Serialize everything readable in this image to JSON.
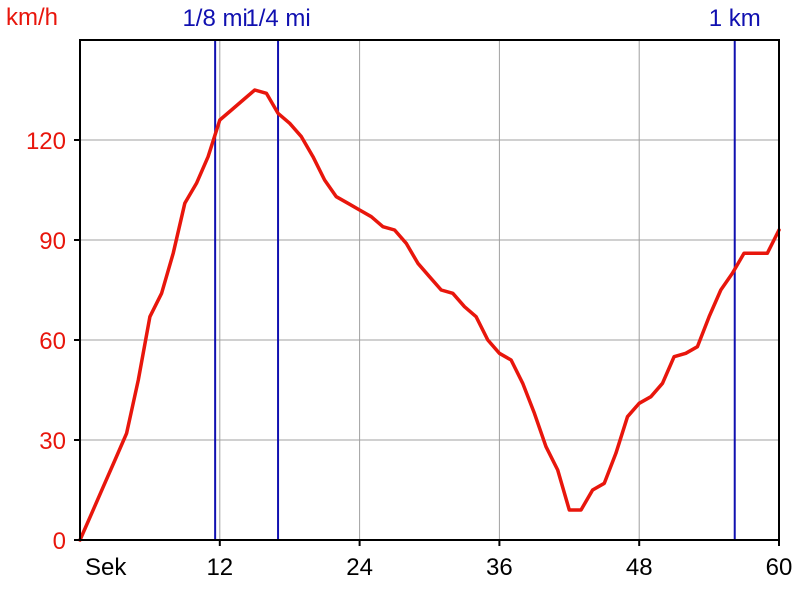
{
  "chart_data": {
    "type": "line",
    "ylabel": "km/h",
    "xlabel": "Sek",
    "xlim": [
      0,
      60
    ],
    "ylim": [
      0,
      150
    ],
    "x_ticks": [
      12,
      24,
      36,
      48,
      60
    ],
    "x_tick_labels": [
      "12",
      "24",
      "36",
      "48",
      "60"
    ],
    "y_ticks": [
      0,
      30,
      60,
      90,
      120
    ],
    "y_tick_labels": [
      "0",
      "30",
      "60",
      "90",
      "120"
    ],
    "grid": true,
    "colors": {
      "line": "#e8160c",
      "markers": "#1010b0",
      "grid": "#a0a0a0",
      "axis": "#000000",
      "ylabels": "#e8160c"
    },
    "markers": [
      {
        "label": "1/8 mi",
        "x": 11.6
      },
      {
        "label": "1/4 mi",
        "x": 17.0
      },
      {
        "label": "1 km",
        "x": 56.2
      }
    ],
    "series": [
      {
        "x": [
          0,
          1,
          2,
          3,
          4,
          5,
          6,
          7,
          8,
          9,
          10,
          11,
          12,
          13,
          14,
          15,
          16,
          17,
          18,
          19,
          20,
          21,
          22,
          23,
          24,
          25,
          26,
          27,
          28,
          29,
          30,
          31,
          32,
          33,
          34,
          35,
          36,
          37,
          38,
          39,
          40,
          41,
          42,
          43,
          44,
          45,
          46,
          47,
          48,
          49,
          50,
          51,
          52,
          53,
          54,
          55,
          56,
          57,
          58,
          59,
          60
        ],
        "values": [
          0,
          8,
          16,
          24,
          32,
          48,
          67,
          74,
          86,
          101,
          107,
          115,
          126,
          129,
          132,
          135,
          134,
          128,
          125,
          121,
          115,
          108,
          103,
          101,
          99,
          97,
          94,
          93,
          89,
          83,
          79,
          75,
          74,
          70,
          67,
          60,
          56,
          54,
          47,
          38,
          28,
          21,
          9,
          9,
          15,
          17,
          26,
          37,
          41,
          43,
          47,
          55,
          56,
          58,
          67,
          75,
          80,
          86,
          86,
          86,
          93
        ]
      }
    ]
  }
}
